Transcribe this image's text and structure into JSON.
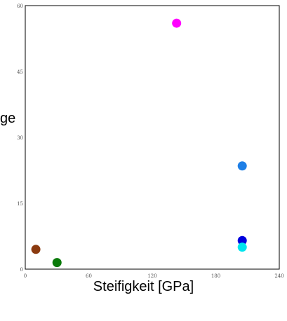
{
  "chart_data": {
    "type": "scatter",
    "xlabel": "Steifigkeit [GPa]",
    "ylabel_fragment": "ge",
    "xlim": [
      0,
      240
    ],
    "ylim": [
      0,
      60
    ],
    "xticks": [
      0,
      60,
      120,
      180,
      240
    ],
    "yticks": [
      0,
      15,
      30,
      45,
      60
    ],
    "grid": false,
    "points": [
      {
        "x": 143,
        "y": 56,
        "color": "#ff00ff"
      },
      {
        "x": 205,
        "y": 23.5,
        "color": "#1e7fe6"
      },
      {
        "x": 205,
        "y": 6.5,
        "color": "#0000dd"
      },
      {
        "x": 205,
        "y": 5,
        "color": "#00e5ee"
      },
      {
        "x": 10,
        "y": 4.5,
        "color": "#8b3a0f"
      },
      {
        "x": 30,
        "y": 1.5,
        "color": "#0a7a0a"
      }
    ]
  }
}
